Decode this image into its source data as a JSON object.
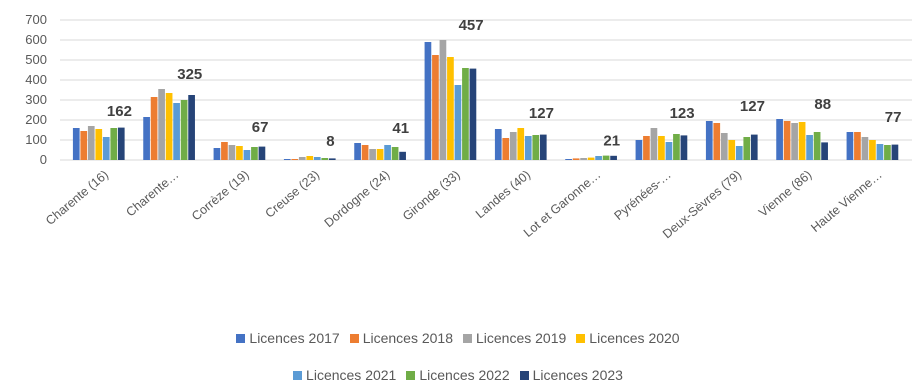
{
  "chart_data": {
    "type": "bar",
    "categories": [
      "Charente (16)",
      "Charente…",
      "Corrèze (19)",
      "Creuse (23)",
      "Dordogne (24)",
      "Gironde (33)",
      "Landes (40)",
      "Lot et Garonne…",
      "Pyrénées-…",
      "Deux-Sèvres (79)",
      "Vienne (86)",
      "Haute Vienne…"
    ],
    "series": [
      {
        "name": "Licences 2017",
        "color": "#4472C4",
        "values": [
          160,
          215,
          60,
          5,
          85,
          590,
          155,
          5,
          100,
          195,
          205,
          140
        ]
      },
      {
        "name": "Licences 2018",
        "color": "#ED7D31",
        "values": [
          145,
          315,
          90,
          5,
          75,
          525,
          110,
          8,
          120,
          185,
          195,
          140
        ]
      },
      {
        "name": "Licences 2019",
        "color": "#A5A5A5",
        "values": [
          170,
          355,
          75,
          15,
          55,
          600,
          140,
          10,
          160,
          135,
          185,
          115
        ]
      },
      {
        "name": "Licences  2020",
        "color": "#FFC000",
        "values": [
          155,
          335,
          70,
          20,
          55,
          515,
          160,
          12,
          120,
          100,
          190,
          100
        ]
      },
      {
        "name": "Licences  2021",
        "color": "#5B9BD5",
        "values": [
          115,
          285,
          50,
          15,
          75,
          375,
          120,
          20,
          90,
          70,
          125,
          80
        ]
      },
      {
        "name": "Licences  2022",
        "color": "#70AD47",
        "values": [
          160,
          300,
          65,
          10,
          65,
          460,
          125,
          22,
          130,
          115,
          140,
          75
        ]
      },
      {
        "name": "Licences  2023",
        "color": "#264478",
        "values": [
          162,
          325,
          67,
          8,
          41,
          457,
          127,
          21,
          123,
          127,
          88,
          77
        ]
      }
    ],
    "data_labels": [
      "162",
      "325",
      "67",
      "8",
      "41",
      "457",
      "127",
      "21",
      "123",
      "127",
      "88",
      "77"
    ],
    "y_ticks": [
      "0",
      "100",
      "200",
      "300",
      "400",
      "500",
      "600",
      "700"
    ],
    "ylim": [
      0,
      700
    ],
    "grid": true,
    "legend_position": "bottom"
  }
}
